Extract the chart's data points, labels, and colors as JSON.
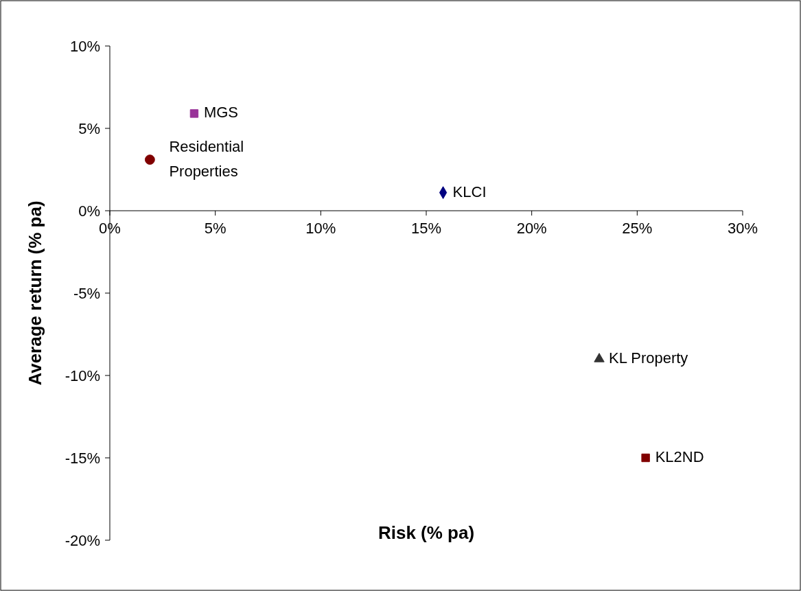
{
  "chart_data": {
    "type": "scatter",
    "xlabel": "Risk (% pa)",
    "ylabel": "Average return (% pa)",
    "xlim": [
      0,
      30
    ],
    "ylim": [
      -20,
      10
    ],
    "xticks": [
      {
        "value": 0,
        "label": "0%"
      },
      {
        "value": 5,
        "label": "5%"
      },
      {
        "value": 10,
        "label": "10%"
      },
      {
        "value": 15,
        "label": "15%"
      },
      {
        "value": 20,
        "label": "20%"
      },
      {
        "value": 25,
        "label": "25%"
      },
      {
        "value": 30,
        "label": "30%"
      }
    ],
    "yticks": [
      {
        "value": -20,
        "label": "-20%"
      },
      {
        "value": -15,
        "label": "-15%"
      },
      {
        "value": -10,
        "label": "-10%"
      },
      {
        "value": -5,
        "label": "-5%"
      },
      {
        "value": 0,
        "label": "0%"
      },
      {
        "value": 5,
        "label": "5%"
      },
      {
        "value": 10,
        "label": "10%"
      }
    ],
    "grid": false,
    "series": [
      {
        "name": "MGS",
        "color": "#993399",
        "marker": "square",
        "x": [
          4.0
        ],
        "values": [
          5.9
        ]
      },
      {
        "name": "Residential Properties",
        "color": "#800000",
        "marker": "circle",
        "x": [
          1.9
        ],
        "values": [
          3.1
        ]
      },
      {
        "name": "KLCI",
        "color": "#000080",
        "marker": "diamond",
        "x": [
          15.8
        ],
        "values": [
          1.1
        ]
      },
      {
        "name": "KL Property",
        "color": "#333333",
        "marker": "triangle",
        "x": [
          23.2
        ],
        "values": [
          -9.0
        ]
      },
      {
        "name": "KL2ND",
        "color": "#800000",
        "marker": "square",
        "x": [
          25.4
        ],
        "values": [
          -15.0
        ]
      }
    ]
  }
}
